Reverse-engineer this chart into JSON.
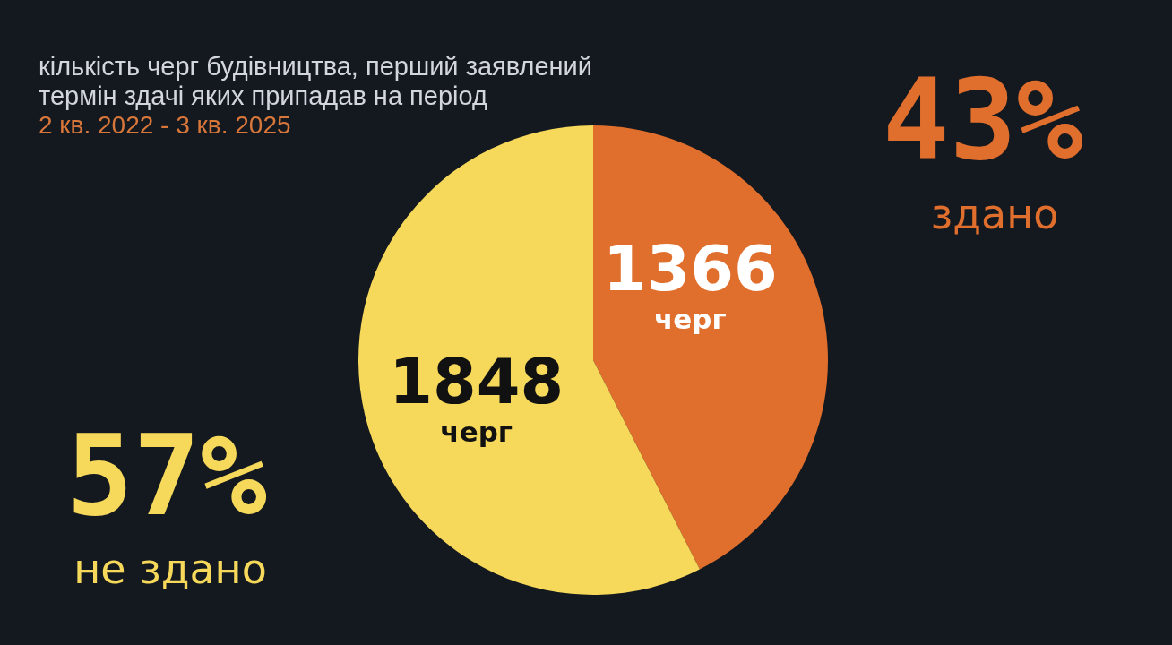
{
  "chart_data": {
    "type": "pie",
    "title": "кількість черг будівництва, перший заявлений термін здачі яких припадав на період",
    "subtitle": "2 кв. 2022 - 3 кв. 2025",
    "categories": [
      "здано",
      "не здано"
    ],
    "values": [
      1366,
      1848
    ],
    "colors": [
      "#e06e2c",
      "#f6d85a"
    ],
    "value_labels": [
      "1366\nчерг",
      "1848\nчерг"
    ],
    "annotations": [
      "43%",
      "57%"
    ]
  }
}
